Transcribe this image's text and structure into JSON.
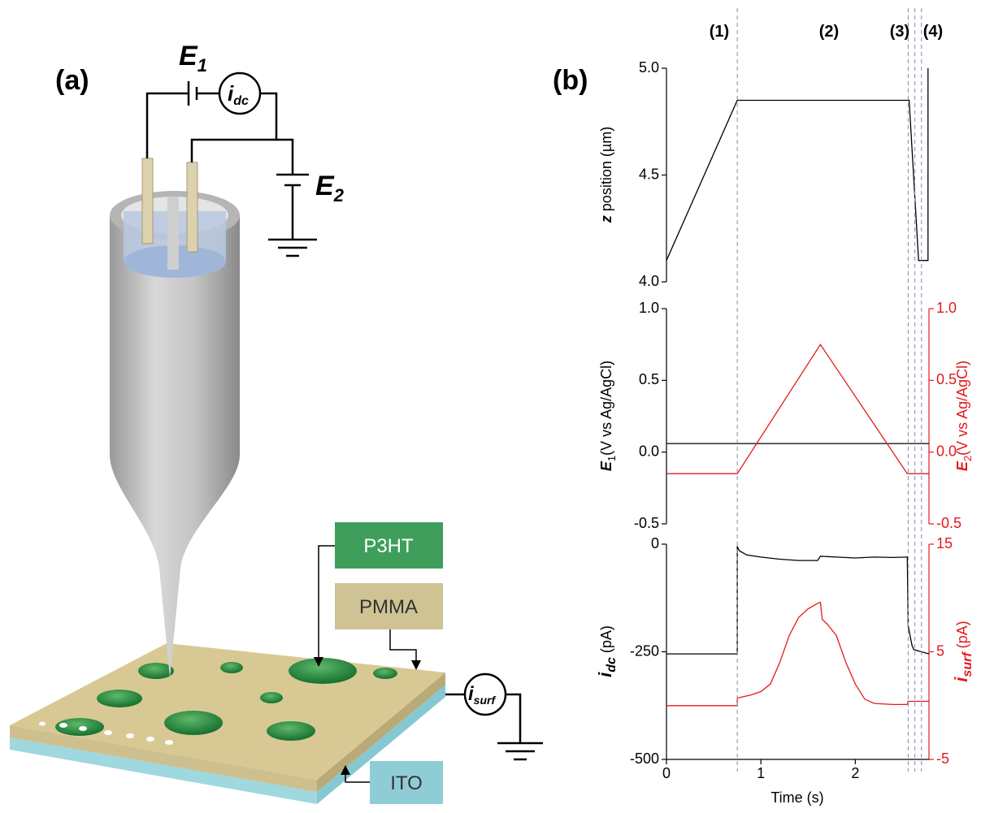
{
  "panel_labels": [
    "(a)",
    "(b)"
  ],
  "diagram": {
    "E1": [
      "E",
      "1"
    ],
    "idc": [
      "i",
      "dc"
    ],
    "E2": [
      "E",
      "2"
    ],
    "isurf": [
      "i",
      "surf"
    ],
    "layers": [
      "P3HT",
      "PMMA",
      "ITO"
    ]
  },
  "chart_data": [
    {
      "type": "line",
      "ylabel": [
        "z",
        " position (µm)"
      ],
      "xlim": [
        0,
        2.78
      ],
      "ylim": [
        4.0,
        5.0
      ],
      "yticks": [
        {
          "value": 4,
          "label": "4.0"
        },
        {
          "value": 4.5,
          "label": "4.5"
        },
        {
          "value": 5,
          "label": "5.0"
        }
      ],
      "vlines": [
        0.75,
        2.56,
        2.63,
        2.7
      ],
      "vline_color": "#8c93b8",
      "annotations": [
        "(1)",
        "(2)",
        "(3)",
        "(4)"
      ],
      "series": [
        {
          "color": "#000000",
          "x": [
            0,
            0.75,
            2.57,
            2.67,
            2.77,
            2.77
          ],
          "values": [
            4.1,
            4.85,
            4.85,
            4.1,
            4.1,
            5.0
          ]
        }
      ]
    },
    {
      "type": "line",
      "ylabel": [
        "E",
        "1",
        "(V vs Ag/AgCl)"
      ],
      "y2label": [
        "E",
        "2",
        "(V vs Ag/AgCl)"
      ],
      "xlim": [
        0,
        2.78
      ],
      "ylim": [
        -0.5,
        1.0
      ],
      "yticks": [
        -0.5,
        {
          "value": 0,
          "label": "0.0"
        },
        0.5,
        {
          "value": 1,
          "label": "1.0"
        }
      ],
      "y2lim": [
        -0.5,
        1.0
      ],
      "y2ticks": [
        -0.5,
        {
          "value": 0,
          "label": "0.0"
        },
        0.5,
        {
          "value": 1,
          "label": "1.0"
        }
      ],
      "series": [
        {
          "color": "#000000",
          "x": [
            0,
            2.78
          ],
          "values": [
            0.06,
            0.06
          ]
        },
        {
          "color": "#e31a1c",
          "axis": "y2",
          "x": [
            0,
            0.75,
            1.63,
            2.55,
            2.78
          ],
          "values": [
            -0.15,
            -0.15,
            0.75,
            -0.15,
            -0.15
          ]
        }
      ]
    },
    {
      "type": "line",
      "ylabel": [
        "i",
        "dc",
        " (pA)"
      ],
      "y2label": [
        "i",
        "surf",
        " (pA)"
      ],
      "xlabel": "Time (s)",
      "xlim": [
        0,
        2.78
      ],
      "xticks": [
        0,
        1,
        2
      ],
      "ylim": [
        -500,
        0
      ],
      "yticks": [
        -500,
        -250,
        0
      ],
      "y2lim": [
        -5,
        15
      ],
      "y2ticks": [
        -5,
        5,
        15
      ],
      "series": [
        {
          "color": "#000000",
          "x": [
            0,
            0.75,
            0.75,
            0.77,
            0.85,
            1.0,
            1.2,
            1.4,
            1.6,
            1.63,
            1.8,
            2.0,
            2.2,
            2.4,
            2.55,
            2.56,
            2.6,
            2.62,
            2.7,
            2.78
          ],
          "values": [
            -255,
            -255,
            -5,
            -15,
            -25,
            -30,
            -35,
            -38,
            -38,
            -28,
            -30,
            -32,
            -30,
            -31,
            -30,
            -190,
            -235,
            -245,
            -250,
            -255
          ]
        },
        {
          "color": "#e31a1c",
          "axis": "y2",
          "x": [
            0,
            0.75,
            0.75,
            0.9,
            1.0,
            1.1,
            1.2,
            1.3,
            1.4,
            1.5,
            1.6,
            1.63,
            1.65,
            1.7,
            1.8,
            1.9,
            2.0,
            2.1,
            2.2,
            2.4,
            2.55,
            2.56,
            2.78
          ],
          "values": [
            0,
            0,
            0.7,
            1.0,
            1.3,
            2.0,
            4.0,
            6.5,
            8.2,
            9.0,
            9.5,
            9.6,
            8.0,
            7.6,
            6.5,
            4.0,
            2.0,
            0.6,
            0.2,
            0.1,
            0.1,
            0.4,
            0.4
          ]
        }
      ]
    }
  ]
}
